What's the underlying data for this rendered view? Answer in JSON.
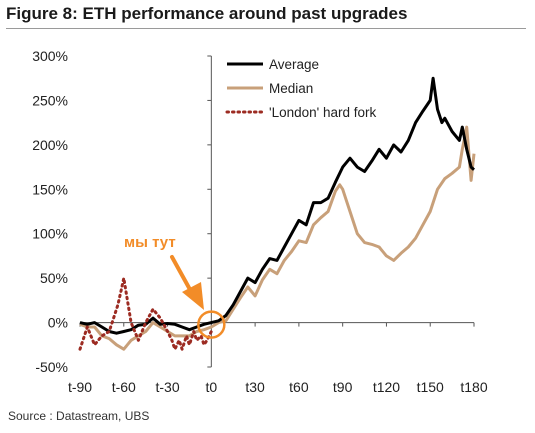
{
  "title": "Figure 8: ETH performance around past upgrades",
  "source": "Source : Datastream, UBS",
  "annotation": {
    "text": "мы тут",
    "color": "#f28c28"
  },
  "colors": {
    "average": "#000000",
    "median": "#c8a07a",
    "london": "#9c2b22",
    "axis": "#555555",
    "highlight": "#f28c28"
  },
  "chart_data": {
    "type": "line",
    "xlim": [
      -90,
      180
    ],
    "ylim": [
      -50,
      300
    ],
    "x_ticks": [
      {
        "value": -90,
        "label": "t-90"
      },
      {
        "value": -60,
        "label": "t-60"
      },
      {
        "value": -30,
        "label": "t-30"
      },
      {
        "value": 0,
        "label": "t0"
      },
      {
        "value": 30,
        "label": "t30"
      },
      {
        "value": 60,
        "label": "t60"
      },
      {
        "value": 90,
        "label": "t90"
      },
      {
        "value": 120,
        "label": "t120"
      },
      {
        "value": 150,
        "label": "t150"
      },
      {
        "value": 180,
        "label": "t180"
      }
    ],
    "y_ticks": [
      {
        "value": -50,
        "label": "-50%"
      },
      {
        "value": 0,
        "label": "0%"
      },
      {
        "value": 50,
        "label": "50%"
      },
      {
        "value": 100,
        "label": "100%"
      },
      {
        "value": 150,
        "label": "150%"
      },
      {
        "value": 200,
        "label": "200%"
      },
      {
        "value": 250,
        "label": "250%"
      },
      {
        "value": 300,
        "label": "300%"
      }
    ],
    "legend_position": "top-right",
    "series": [
      {
        "name": "Average",
        "style": "solid",
        "color": "#000000",
        "x": [
          -90,
          -85,
          -80,
          -75,
          -70,
          -65,
          -60,
          -55,
          -50,
          -45,
          -40,
          -35,
          -30,
          -25,
          -20,
          -15,
          -10,
          -5,
          0,
          5,
          10,
          15,
          20,
          25,
          30,
          35,
          40,
          45,
          50,
          55,
          60,
          65,
          70,
          75,
          80,
          85,
          90,
          95,
          100,
          105,
          110,
          115,
          120,
          125,
          130,
          135,
          140,
          145,
          150,
          152,
          155,
          158,
          160,
          165,
          170,
          172,
          175,
          178,
          180
        ],
        "y": [
          0,
          -2,
          0,
          -5,
          -10,
          -12,
          -10,
          -8,
          -3,
          -2,
          5,
          -2,
          -1,
          -2,
          -5,
          -8,
          -5,
          -2,
          0,
          2,
          8,
          20,
          35,
          50,
          45,
          60,
          72,
          70,
          85,
          100,
          115,
          110,
          135,
          135,
          140,
          158,
          175,
          185,
          175,
          170,
          182,
          195,
          185,
          200,
          192,
          205,
          225,
          238,
          250,
          275,
          240,
          225,
          230,
          215,
          205,
          220,
          195,
          175,
          172
        ]
      },
      {
        "name": "Median",
        "style": "solid",
        "color": "#c8a07a",
        "x": [
          -90,
          -85,
          -80,
          -75,
          -70,
          -65,
          -60,
          -55,
          -50,
          -45,
          -40,
          -35,
          -30,
          -25,
          -20,
          -15,
          -10,
          -5,
          0,
          5,
          10,
          15,
          20,
          25,
          30,
          35,
          40,
          45,
          50,
          55,
          60,
          65,
          70,
          75,
          80,
          85,
          88,
          90,
          92,
          95,
          100,
          105,
          110,
          115,
          120,
          125,
          130,
          135,
          140,
          145,
          150,
          155,
          160,
          165,
          170,
          172,
          175,
          178,
          180
        ],
        "y": [
          -2,
          -5,
          -5,
          -15,
          -18,
          -25,
          -30,
          -20,
          -15,
          -10,
          0,
          -5,
          -10,
          -15,
          -15,
          -15,
          -10,
          -8,
          -5,
          0,
          2,
          15,
          28,
          40,
          30,
          48,
          60,
          55,
          70,
          80,
          92,
          90,
          110,
          118,
          125,
          148,
          155,
          150,
          140,
          125,
          100,
          90,
          88,
          85,
          75,
          70,
          78,
          85,
          95,
          110,
          125,
          150,
          162,
          168,
          175,
          195,
          220,
          160,
          190
        ]
      },
      {
        "name": "'London' hard fork",
        "style": "dotted",
        "color": "#9c2b22",
        "x": [
          -90,
          -85,
          -80,
          -75,
          -70,
          -67,
          -64,
          -62,
          -60,
          -58,
          -55,
          -50,
          -45,
          -40,
          -35,
          -30,
          -27,
          -25,
          -22,
          -20,
          -17,
          -15,
          -12,
          -10,
          -7,
          -5,
          -3,
          0
        ],
        "y": [
          -30,
          -5,
          -25,
          -15,
          -10,
          5,
          20,
          35,
          50,
          30,
          0,
          -20,
          0,
          15,
          5,
          -10,
          -20,
          -30,
          -20,
          -30,
          -15,
          -25,
          -10,
          -20,
          -15,
          -25,
          -20,
          -10
        ]
      }
    ]
  }
}
